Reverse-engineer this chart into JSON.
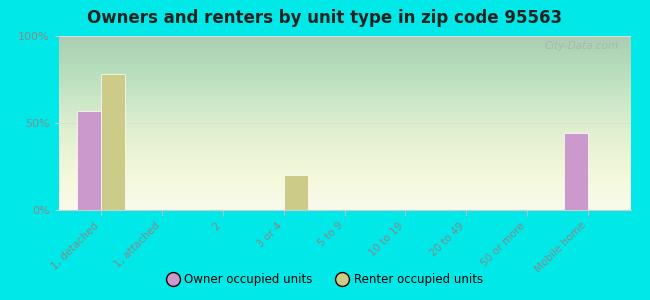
{
  "title": "Owners and renters by unit type in zip code 95563",
  "categories": [
    "1, detached",
    "1, attached",
    "2",
    "3 or 4",
    "5 to 9",
    "10 to 19",
    "20 to 49",
    "50 or more",
    "Mobile home"
  ],
  "owner_values": [
    57,
    0,
    0,
    0,
    0,
    0,
    0,
    0,
    44
  ],
  "renter_values": [
    78,
    0,
    0,
    20,
    0,
    0,
    0,
    0,
    0
  ],
  "owner_color": "#cc99cc",
  "renter_color": "#cccc88",
  "outer_bg": "#00e8e8",
  "plot_bg_top": "#e8f0d8",
  "plot_bg_bottom": "#f8faf4",
  "ylim": [
    0,
    100
  ],
  "yticks": [
    0,
    50,
    100
  ],
  "ytick_labels": [
    "0%",
    "50%",
    "100%"
  ],
  "bar_width": 0.4,
  "legend_owner": "Owner occupied units",
  "legend_renter": "Renter occupied units",
  "watermark": "City-Data.com",
  "grid_color": "#dddddd",
  "tick_color": "#888888",
  "title_fontsize": 12
}
